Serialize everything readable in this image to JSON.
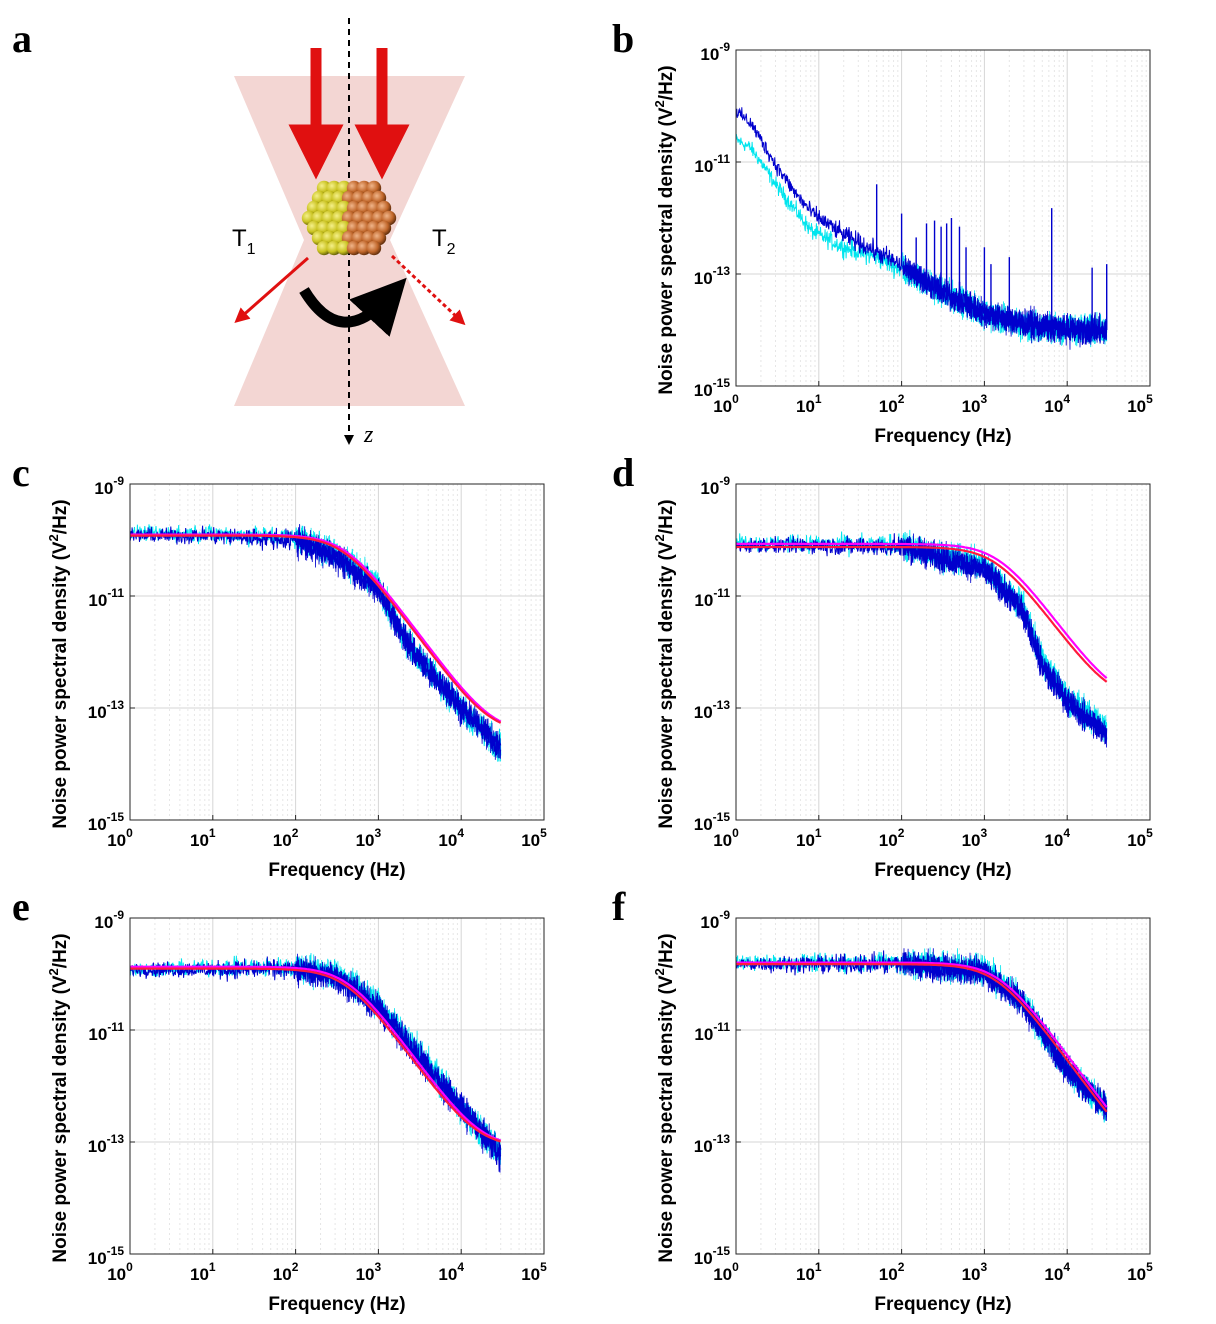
{
  "figure": {
    "diagram": {
      "letter": "a",
      "label_left": "T",
      "label_left_sub": "1",
      "label_right": "T",
      "label_right_sub": "2",
      "axis_label": "z",
      "colors": {
        "beam": "#f3d6d3",
        "arrow": "#e01010",
        "half_left": "#c9c220",
        "half_right": "#c0662a",
        "rotation": "#000000"
      }
    }
  },
  "chart_data": [
    {
      "panel": "b",
      "type": "line",
      "xlabel": "Frequency (Hz)",
      "ylabel_main": "Noise power spectral density (V",
      "ylabel_sup": "2",
      "ylabel_tail": "/Hz)",
      "xscale": "log",
      "yscale": "log",
      "xlim": [
        1,
        100000
      ],
      "ylim": [
        1e-15,
        1e-09
      ],
      "xticks": [
        {
          "base": "10",
          "exp": "0"
        },
        {
          "base": "10",
          "exp": "1"
        },
        {
          "base": "10",
          "exp": "2"
        },
        {
          "base": "10",
          "exp": "3"
        },
        {
          "base": "10",
          "exp": "4"
        },
        {
          "base": "10",
          "exp": "5"
        }
      ],
      "yticks": [
        {
          "base": "10",
          "exp": "-15"
        },
        {
          "base": "10",
          "exp": "-13"
        },
        {
          "base": "10",
          "exp": "-11"
        },
        {
          "base": "10",
          "exp": "-9"
        }
      ],
      "grid": true,
      "series": [
        {
          "color": "#00e5ee",
          "kind": "noise",
          "x": [
            1,
            1.5,
            2,
            3,
            5,
            8,
            10,
            20,
            50,
            100,
            300,
            1000,
            3000,
            10000,
            30000
          ],
          "y": [
            2.5e-11,
            1.8e-11,
            1e-11,
            4e-12,
            1.5e-12,
            6e-13,
            5e-13,
            3e-13,
            2e-13,
            1.2e-13,
            5e-14,
            2e-14,
            1.2e-14,
            1e-14,
            1e-14
          ]
        },
        {
          "color": "#0000cd",
          "kind": "noise",
          "x": [
            1,
            1.5,
            2,
            3,
            5,
            8,
            10,
            20,
            50,
            100,
            300,
            1000,
            3000,
            10000,
            30000
          ],
          "y": [
            8e-11,
            5e-11,
            2.5e-11,
            9e-12,
            3e-12,
            1.3e-12,
            1e-12,
            5e-13,
            2.5e-13,
            1.4e-13,
            5e-14,
            2e-14,
            1.3e-14,
            1e-14,
            1e-14
          ],
          "spikes": [
            {
              "x": 50,
              "y": 4e-12
            },
            {
              "x": 100,
              "y": 1.2e-12
            },
            {
              "x": 150,
              "y": 4.5e-13
            },
            {
              "x": 200,
              "y": 8e-13
            },
            {
              "x": 250,
              "y": 9e-13
            },
            {
              "x": 300,
              "y": 7e-13
            },
            {
              "x": 350,
              "y": 8e-13
            },
            {
              "x": 400,
              "y": 1e-12
            },
            {
              "x": 500,
              "y": 7e-13
            },
            {
              "x": 600,
              "y": 3e-13
            },
            {
              "x": 1000,
              "y": 3e-13
            },
            {
              "x": 1200,
              "y": 1.5e-13
            },
            {
              "x": 2000,
              "y": 2e-13
            },
            {
              "x": 6500,
              "y": 1.5e-12
            },
            {
              "x": 20000,
              "y": 1.3e-13
            },
            {
              "x": 30000,
              "y": 1.5e-13
            }
          ]
        }
      ]
    },
    {
      "panel": "c",
      "type": "line",
      "xlabel": "Frequency (Hz)",
      "ylabel_main": "Noise power spectral density (V",
      "ylabel_sup": "2",
      "ylabel_tail": "/Hz)",
      "xscale": "log",
      "yscale": "log",
      "xlim": [
        1,
        100000
      ],
      "ylim": [
        1e-15,
        1e-09
      ],
      "xticks": [
        {
          "base": "10",
          "exp": "0"
        },
        {
          "base": "10",
          "exp": "1"
        },
        {
          "base": "10",
          "exp": "2"
        },
        {
          "base": "10",
          "exp": "3"
        },
        {
          "base": "10",
          "exp": "4"
        },
        {
          "base": "10",
          "exp": "5"
        }
      ],
      "yticks": [
        {
          "base": "10",
          "exp": "-15"
        },
        {
          "base": "10",
          "exp": "-13"
        },
        {
          "base": "10",
          "exp": "-11"
        },
        {
          "base": "10",
          "exp": "-9"
        }
      ],
      "grid": true,
      "series": [
        {
          "color": "#00e5ee",
          "kind": "noise",
          "x": [
            1,
            10,
            100,
            300,
            1000,
            2000,
            3000,
            10000,
            30000
          ],
          "y": [
            1.3e-10,
            1.3e-10,
            1.1e-10,
            6e-11,
            1.5e-11,
            2e-12,
            8e-13,
            1e-13,
            2e-14
          ]
        },
        {
          "color": "#0000cd",
          "kind": "noise",
          "x": [
            1,
            10,
            100,
            300,
            1000,
            2000,
            3000,
            10000,
            30000
          ],
          "y": [
            1.2e-10,
            1.2e-10,
            1e-10,
            5e-11,
            1.3e-11,
            2e-12,
            8e-13,
            1e-13,
            2e-14
          ]
        },
        {
          "color": "#ff00ff",
          "kind": "fit",
          "fc": 400,
          "plateau": 1.25e-10,
          "floor": 3.5e-14
        },
        {
          "color": "#ff1a3c",
          "kind": "fit",
          "fc": 380,
          "plateau": 1.2e-10,
          "floor": 3.5e-14
        }
      ]
    },
    {
      "panel": "d",
      "type": "line",
      "xlabel": "Frequency (Hz)",
      "ylabel_main": "Noise power spectral density (V",
      "ylabel_sup": "2",
      "ylabel_tail": "/Hz)",
      "xscale": "log",
      "yscale": "log",
      "xlim": [
        1,
        100000
      ],
      "ylim": [
        1e-15,
        1e-09
      ],
      "xticks": [
        {
          "base": "10",
          "exp": "0"
        },
        {
          "base": "10",
          "exp": "1"
        },
        {
          "base": "10",
          "exp": "2"
        },
        {
          "base": "10",
          "exp": "3"
        },
        {
          "base": "10",
          "exp": "4"
        },
        {
          "base": "10",
          "exp": "5"
        }
      ],
      "yticks": [
        {
          "base": "10",
          "exp": "-15"
        },
        {
          "base": "10",
          "exp": "-13"
        },
        {
          "base": "10",
          "exp": "-11"
        },
        {
          "base": "10",
          "exp": "-9"
        }
      ],
      "grid": true,
      "series": [
        {
          "color": "#00e5ee",
          "kind": "noise",
          "x": [
            1,
            10,
            100,
            1000,
            3000,
            5000,
            10000,
            30000
          ],
          "y": [
            9e-11,
            8.5e-11,
            8e-11,
            3.5e-11,
            6e-12,
            7e-13,
            1.5e-13,
            4e-14
          ]
        },
        {
          "color": "#0000cd",
          "kind": "noise",
          "x": [
            1,
            10,
            100,
            1000,
            3000,
            5000,
            10000,
            30000
          ],
          "y": [
            8e-11,
            8e-11,
            7.5e-11,
            3e-11,
            5e-12,
            6e-13,
            1.3e-13,
            3.5e-14
          ]
        },
        {
          "color": "#ff00ff",
          "kind": "fit",
          "fc": 1500,
          "plateau": 8.5e-11,
          "floor": 1.3e-13
        },
        {
          "color": "#ff1a3c",
          "kind": "fit",
          "fc": 1400,
          "plateau": 7.5e-11,
          "floor": 1.3e-13
        }
      ]
    },
    {
      "panel": "e",
      "type": "line",
      "xlabel": "Frequency (Hz)",
      "ylabel_main": "Noise power spectral density (V",
      "ylabel_sup": "2",
      "ylabel_tail": "/Hz)",
      "xscale": "log",
      "yscale": "log",
      "xlim": [
        1,
        100000
      ],
      "ylim": [
        1e-15,
        1e-09
      ],
      "xticks": [
        {
          "base": "10",
          "exp": "0"
        },
        {
          "base": "10",
          "exp": "1"
        },
        {
          "base": "10",
          "exp": "2"
        },
        {
          "base": "10",
          "exp": "3"
        },
        {
          "base": "10",
          "exp": "4"
        },
        {
          "base": "10",
          "exp": "5"
        }
      ],
      "yticks": [
        {
          "base": "10",
          "exp": "-15"
        },
        {
          "base": "10",
          "exp": "-13"
        },
        {
          "base": "10",
          "exp": "-11"
        },
        {
          "base": "10",
          "exp": "-9"
        }
      ],
      "grid": true,
      "series": [
        {
          "color": "#00e5ee",
          "kind": "noise",
          "x": [
            1,
            10,
            100,
            300,
            1000,
            3000,
            10000,
            30000
          ],
          "y": [
            1.2e-10,
            1.3e-10,
            1.3e-10,
            1e-10,
            3e-11,
            4e-12,
            4e-13,
            6e-14
          ]
        },
        {
          "color": "#0000cd",
          "kind": "noise",
          "x": [
            1,
            10,
            100,
            300,
            1000,
            3000,
            10000,
            30000
          ],
          "y": [
            1.2e-10,
            1.2e-10,
            1.2e-10,
            9e-11,
            2.5e-11,
            3.5e-12,
            4e-13,
            6e-14
          ]
        },
        {
          "color": "#ff00ff",
          "kind": "fit",
          "fc": 420,
          "plateau": 1.35e-10,
          "floor": 8e-14
        },
        {
          "color": "#ff1a3c",
          "kind": "fit",
          "fc": 400,
          "plateau": 1.25e-10,
          "floor": 8e-14
        }
      ]
    },
    {
      "panel": "f",
      "type": "line",
      "xlabel": "Frequency (Hz)",
      "ylabel_main": "Noise power spectral density (V",
      "ylabel_sup": "2",
      "ylabel_tail": "/Hz)",
      "xscale": "log",
      "yscale": "log",
      "xlim": [
        1,
        100000
      ],
      "ylim": [
        1e-15,
        1e-09
      ],
      "xticks": [
        {
          "base": "10",
          "exp": "0"
        },
        {
          "base": "10",
          "exp": "1"
        },
        {
          "base": "10",
          "exp": "2"
        },
        {
          "base": "10",
          "exp": "3"
        },
        {
          "base": "10",
          "exp": "4"
        },
        {
          "base": "10",
          "exp": "5"
        }
      ],
      "yticks": [
        {
          "base": "10",
          "exp": "-15"
        },
        {
          "base": "10",
          "exp": "-13"
        },
        {
          "base": "10",
          "exp": "-11"
        },
        {
          "base": "10",
          "exp": "-9"
        }
      ],
      "grid": true,
      "series": [
        {
          "color": "#00e5ee",
          "kind": "noise",
          "x": [
            1,
            10,
            100,
            1000,
            3000,
            10000,
            30000
          ],
          "y": [
            1.6e-10,
            1.6e-10,
            1.6e-10,
            1.2e-10,
            3e-11,
            2e-12,
            4e-13
          ]
        },
        {
          "color": "#0000cd",
          "kind": "noise",
          "x": [
            1,
            10,
            100,
            1000,
            3000,
            10000,
            30000
          ],
          "y": [
            1.5e-10,
            1.5e-10,
            1.5e-10,
            1.1e-10,
            2.8e-11,
            2e-12,
            4e-13
          ]
        },
        {
          "color": "#ff00ff",
          "kind": "fit",
          "fc": 1500,
          "plateau": 1.6e-10,
          "floor": 2e-14
        },
        {
          "color": "#ff1a3c",
          "kind": "fit",
          "fc": 1400,
          "plateau": 1.5e-10,
          "floor": 2e-14
        }
      ]
    }
  ]
}
